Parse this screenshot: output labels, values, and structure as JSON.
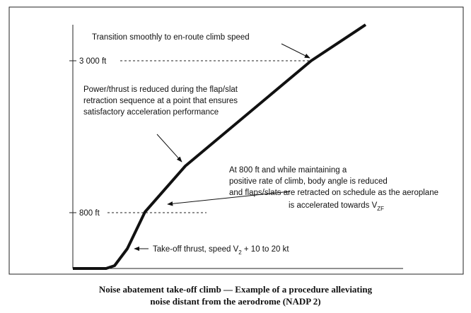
{
  "diagram": {
    "ticks": [
      "3 000 ft",
      "800 ft"
    ],
    "transition_note": "Transition smoothly to en-route climb speed",
    "power_note": [
      "Power/thrust is reduced during the flap/slat",
      "retraction sequence at a point that ensures",
      "satisfactory acceleration performance"
    ],
    "flaps_note": [
      "At 800 ft and while maintaining a",
      "positive rate of climb, body angle is reduced",
      "and flaps/slats are retracted on schedule as the aeroplane",
      "is accelerated towards V",
      "ZF"
    ],
    "takeoff_note": [
      "Take-off thrust, speed V",
      "2",
      " + 10 to 20 kt"
    ],
    "caption": [
      "Noise abatement take-off climb — Example of a procedure alleviating",
      "noise distant from the aerodrome (NADP 2)"
    ]
  }
}
